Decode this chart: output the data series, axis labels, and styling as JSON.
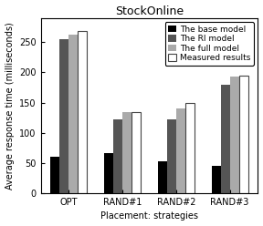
{
  "title": "StockOnline",
  "xlabel": "Placement: strategies",
  "ylabel": "Average response time (milliseconds)",
  "categories": [
    "OPT",
    "RAND#1",
    "RAND#2",
    "RAND#3"
  ],
  "series": [
    {
      "label": "The base model",
      "color": "#000000",
      "values": [
        60,
        67,
        53,
        46
      ]
    },
    {
      "label": "The RI model",
      "color": "#555555",
      "values": [
        255,
        122,
        122,
        180
      ]
    },
    {
      "label": "The full model",
      "color": "#aaaaaa",
      "values": [
        263,
        135,
        140,
        193
      ]
    },
    {
      "label": "Measured results",
      "color": "#ffffff",
      "values": [
        268,
        135,
        150,
        195
      ]
    }
  ],
  "ylim": [
    0,
    290
  ],
  "yticks": [
    0,
    50,
    100,
    150,
    200,
    250
  ],
  "bar_width": 0.17,
  "title_fontsize": 9,
  "axis_label_fontsize": 7,
  "tick_fontsize": 7,
  "legend_fontsize": 6.5,
  "bg_color": "#ffffff"
}
